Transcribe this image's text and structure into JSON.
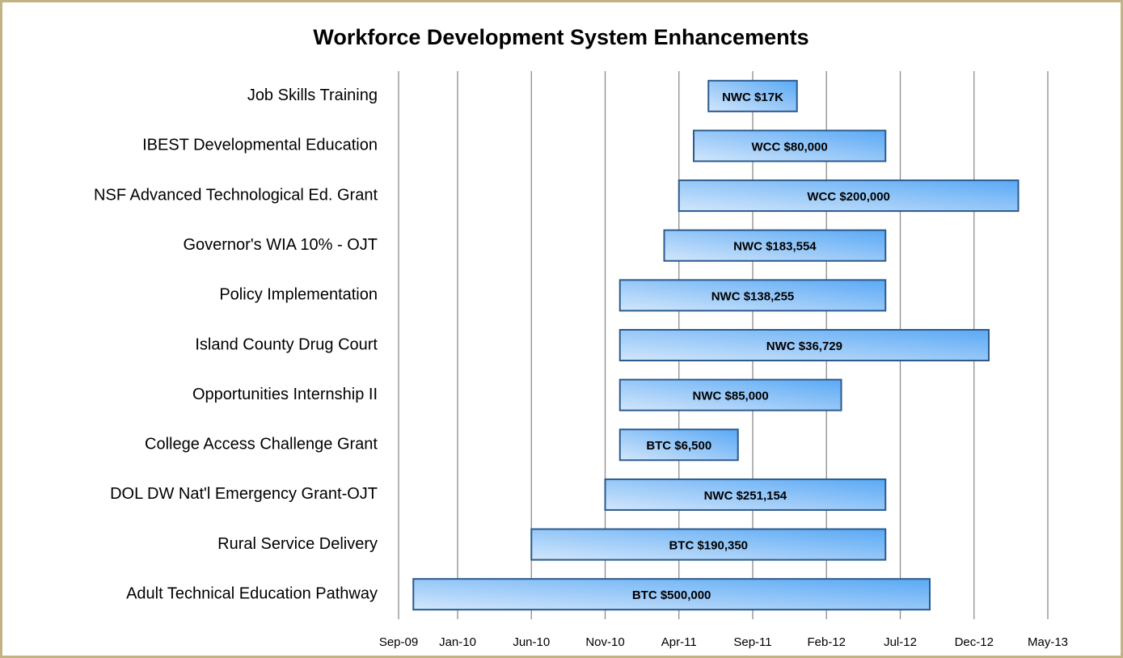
{
  "chart_data": {
    "type": "gantt",
    "title": "Workforce Development System Enhancements",
    "categories": [
      "Job Skills Training",
      "IBEST Developmental Education ",
      "NSF Advanced Technological Ed. Grant",
      "Governor's WIA 10% - OJT",
      "Policy Implementation",
      "Island County Drug Court",
      "Opportunities Internship II",
      "College Access Challenge Grant",
      "DOL DW Nat'l Emergency Grant-OJT",
      "Rural Service Delivery",
      "Adult Technical Education Pathway"
    ],
    "start": [
      "2011-06",
      "2011-05",
      "2011-04",
      "2011-03",
      "2010-12",
      "2010-12",
      "2010-12",
      "2010-12",
      "2010-11",
      "2010-06",
      "2009-10"
    ],
    "end": [
      "2011-12",
      "2012-06",
      "2013-03",
      "2012-06",
      "2012-06",
      "2013-01",
      "2012-03",
      "2011-08",
      "2012-06",
      "2012-06",
      "2012-09"
    ],
    "bar_labels": [
      "NWC $17K",
      "WCC $80,000",
      "WCC $200,000",
      "NWC  $183,554",
      "NWC  $138,255",
      "NWC  $36,729",
      "NWC  $85,000",
      "BTC $6,500",
      "NWC $251,154",
      "BTC  $190,350",
      "BTC  $500,000"
    ],
    "color": "#5aa9f5",
    "xlim": [
      "2009-09",
      "2013-05"
    ],
    "xticks": [
      {
        "value": "2009-09",
        "label": "Sep-09"
      },
      {
        "value": "2010-01",
        "label": "Jan-10"
      },
      {
        "value": "2010-06",
        "label": "Jun-10"
      },
      {
        "value": "2010-11",
        "label": "Nov-10"
      },
      {
        "value": "2011-04",
        "label": "Apr-11"
      },
      {
        "value": "2011-09",
        "label": "Sep-11"
      },
      {
        "value": "2012-02",
        "label": "Feb-12"
      },
      {
        "value": "2012-07",
        "label": "Jul-12"
      },
      {
        "value": "2012-12",
        "label": "Dec-12"
      },
      {
        "value": "2013-05",
        "label": "May-13"
      }
    ],
    "grid": true
  }
}
